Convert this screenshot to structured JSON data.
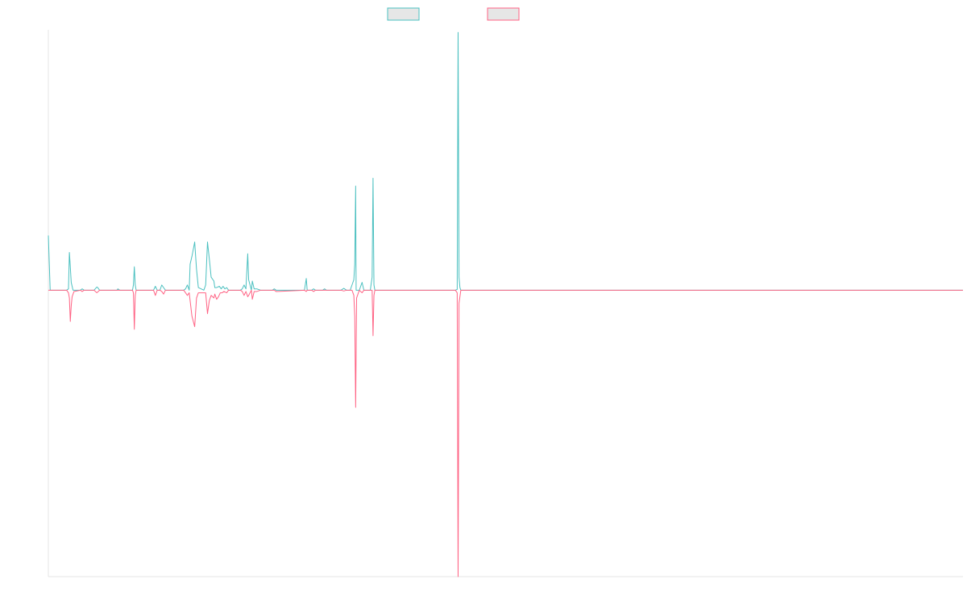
{
  "chart_data": {
    "type": "line",
    "title": "",
    "xlabel": "",
    "ylabel": "",
    "grid": false,
    "legend": {
      "placement": "top-center"
    },
    "xlim": [
      0,
      1000
    ],
    "ylim": [
      -1.1,
      1.0
    ],
    "series": [
      {
        "color": "#4bc0c0",
        "legend_fill": "#e6e6e6",
        "points": [
          [
            0,
            0.21
          ],
          [
            2,
            0
          ],
          [
            10,
            0
          ],
          [
            20,
            0
          ],
          [
            22,
            0.005
          ],
          [
            23,
            0.145
          ],
          [
            24,
            0.09
          ],
          [
            25,
            0.03
          ],
          [
            27,
            0
          ],
          [
            35,
            0
          ],
          [
            37,
            0.005
          ],
          [
            39,
            0
          ],
          [
            50,
            0
          ],
          [
            53,
            0.012
          ],
          [
            54,
            0.01
          ],
          [
            56,
            0
          ],
          [
            75,
            0
          ],
          [
            76,
            0.005
          ],
          [
            78,
            0
          ],
          [
            92,
            0
          ],
          [
            93,
            0.02
          ],
          [
            94,
            0.09
          ],
          [
            95,
            0.02
          ],
          [
            96,
            0
          ],
          [
            115,
            0
          ],
          [
            117,
            0.015
          ],
          [
            119,
            0
          ],
          [
            122,
            0
          ],
          [
            124,
            0.02
          ],
          [
            126,
            0.01
          ],
          [
            128,
            0
          ],
          [
            148,
            0
          ],
          [
            150,
            0.005
          ],
          [
            152,
            0.02
          ],
          [
            154,
            0
          ],
          [
            155,
            0.1
          ],
          [
            157,
            0.13
          ],
          [
            160,
            0.185
          ],
          [
            162,
            0.08
          ],
          [
            164,
            0.01
          ],
          [
            170,
            0
          ],
          [
            172,
            0.02
          ],
          [
            174,
            0.185
          ],
          [
            176,
            0.12
          ],
          [
            178,
            0.05
          ],
          [
            181,
            0.035
          ],
          [
            182,
            0.01
          ],
          [
            184,
            0.01
          ],
          [
            187,
            0.015
          ],
          [
            189,
            0.005
          ],
          [
            191,
            0.015
          ],
          [
            193,
            0.005
          ],
          [
            195,
            0.01
          ],
          [
            197,
            0
          ],
          [
            210,
            0
          ],
          [
            212,
            0.005
          ],
          [
            214,
            0.02
          ],
          [
            216,
            0.005
          ],
          [
            218,
            0.14
          ],
          [
            219,
            0.04
          ],
          [
            222,
            0
          ],
          [
            223,
            0.035
          ],
          [
            225,
            0.005
          ],
          [
            228,
            0.005
          ],
          [
            232,
            0
          ],
          [
            245,
            0
          ],
          [
            247,
            0.005
          ],
          [
            249,
            0
          ],
          [
            280,
            0
          ],
          [
            282,
            0.045
          ],
          [
            283,
            0
          ],
          [
            288,
            0
          ],
          [
            290,
            0.005
          ],
          [
            292,
            0
          ],
          [
            300,
            0
          ],
          [
            302,
            0.005
          ],
          [
            304,
            0
          ],
          [
            320,
            0
          ],
          [
            323,
            0.007
          ],
          [
            326,
            0
          ],
          [
            330,
            0
          ],
          [
            332,
            0.02
          ],
          [
            334,
            0.04
          ],
          [
            335,
            0.1
          ],
          [
            336,
            0.4
          ],
          [
            336.5,
            0.0
          ],
          [
            340,
            0
          ],
          [
            343,
            0.03
          ],
          [
            345,
            0
          ],
          [
            352,
            0
          ],
          [
            354,
            0.05
          ],
          [
            355,
            0.43
          ],
          [
            356,
            0.02
          ],
          [
            357,
            0
          ],
          [
            445,
            0
          ],
          [
            447,
            0.003
          ],
          [
            448,
            0.99
          ],
          [
            449,
            0.05
          ],
          [
            450,
            0.01
          ],
          [
            451,
            0
          ],
          [
            1000,
            0
          ]
        ]
      },
      {
        "color": "#ff6384",
        "legend_fill": "#e6e6e6",
        "points": [
          [
            0,
            0
          ],
          [
            10,
            0
          ],
          [
            20,
            0
          ],
          [
            22,
            -0.01
          ],
          [
            23,
            -0.03
          ],
          [
            24,
            -0.12
          ],
          [
            25,
            -0.06
          ],
          [
            26,
            -0.025
          ],
          [
            28,
            -0.005
          ],
          [
            35,
            0
          ],
          [
            37,
            -0.005
          ],
          [
            39,
            0
          ],
          [
            50,
            0
          ],
          [
            53,
            -0.01
          ],
          [
            56,
            0
          ],
          [
            92,
            0
          ],
          [
            93,
            -0.01
          ],
          [
            94,
            -0.15
          ],
          [
            95,
            -0.02
          ],
          [
            96,
            0
          ],
          [
            115,
            0
          ],
          [
            117,
            -0.02
          ],
          [
            119,
            0
          ],
          [
            122,
            0
          ],
          [
            124,
            -0.005
          ],
          [
            126,
            -0.015
          ],
          [
            128,
            0
          ],
          [
            148,
            0
          ],
          [
            152,
            -0.02
          ],
          [
            154,
            -0.01
          ],
          [
            157,
            -0.1
          ],
          [
            160,
            -0.14
          ],
          [
            162,
            -0.03
          ],
          [
            164,
            -0.01
          ],
          [
            172,
            -0.01
          ],
          [
            174,
            -0.09
          ],
          [
            176,
            -0.04
          ],
          [
            178,
            -0.02
          ],
          [
            181,
            -0.03
          ],
          [
            182,
            -0.015
          ],
          [
            184,
            -0.035
          ],
          [
            186,
            -0.025
          ],
          [
            188,
            -0.01
          ],
          [
            190,
            -0.01
          ],
          [
            192,
            -0.005
          ],
          [
            195,
            -0.01
          ],
          [
            197,
            0
          ],
          [
            210,
            0
          ],
          [
            212,
            -0.005
          ],
          [
            214,
            -0.02
          ],
          [
            216,
            -0.005
          ],
          [
            218,
            -0.025
          ],
          [
            219,
            -0.02
          ],
          [
            222,
            0
          ],
          [
            223,
            -0.035
          ],
          [
            225,
            -0.005
          ],
          [
            228,
            -0.005
          ],
          [
            232,
            0
          ],
          [
            247,
            0
          ],
          [
            249,
            -0.005
          ],
          [
            280,
            0
          ],
          [
            282,
            -0.005
          ],
          [
            283,
            0
          ],
          [
            288,
            0
          ],
          [
            290,
            -0.005
          ],
          [
            292,
            0
          ],
          [
            320,
            0
          ],
          [
            323,
            -0.003
          ],
          [
            326,
            0
          ],
          [
            332,
            0
          ],
          [
            334,
            -0.02
          ],
          [
            335,
            -0.1
          ],
          [
            336,
            -0.45
          ],
          [
            337,
            -0.03
          ],
          [
            340,
            0
          ],
          [
            343,
            -0.01
          ],
          [
            345,
            0
          ],
          [
            354,
            0
          ],
          [
            355,
            -0.175
          ],
          [
            356,
            -0.02
          ],
          [
            357,
            0
          ],
          [
            445,
            0
          ],
          [
            447,
            -0.01
          ],
          [
            448,
            -1.1
          ],
          [
            449,
            -0.05
          ],
          [
            451,
            0
          ],
          [
            1000,
            0
          ]
        ]
      }
    ]
  }
}
